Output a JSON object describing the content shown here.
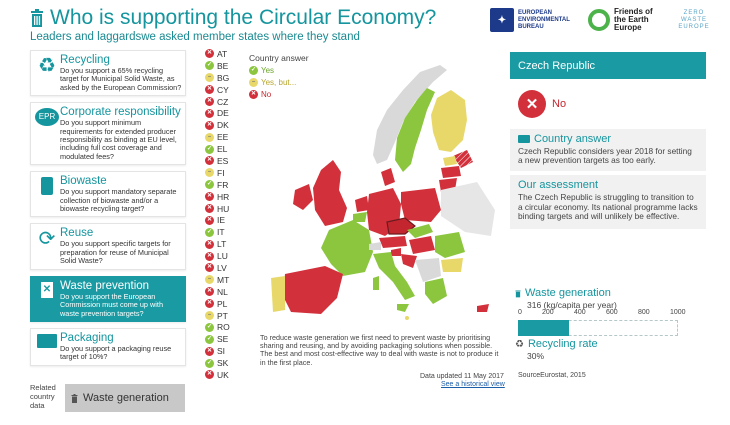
{
  "header": {
    "title": "Who is supporting the Circular Economy?",
    "subtitle": "Leaders and laggardswe asked member states where they stand",
    "logos": {
      "eeb": "EUROPEAN ENVIRONMENTAL BUREAU",
      "foe": "Friends of the Earth Europe",
      "zw": "ZERO WASTE EUROPE"
    }
  },
  "menu": [
    {
      "icon": "recycle-icon",
      "title": "Recycling",
      "desc": "Do you support a 65% recycling target for Municipal Solid Waste, as asked by the European Commission?"
    },
    {
      "icon": "epr-icon",
      "icon_text": "EPR",
      "title": "Corporate responsibility",
      "desc": "Do you support minimum requirements for extended producer responsibility as binding at EU level, including full cost coverage and modulated fees?"
    },
    {
      "icon": "biowaste-icon",
      "title": "Biowaste",
      "desc": "Do you support mandatory separate collection of biowaste and/or a biowaste recycling target?"
    },
    {
      "icon": "reuse-icon",
      "title": "Reuse",
      "desc": "Do you support specific targets for preparation for reuse of Municipal Solid Waste?"
    },
    {
      "icon": "waste-prevention-icon",
      "title": "Waste prevention",
      "desc": "Do you support the European Commission must come up with waste prevention targets?",
      "active": true
    },
    {
      "icon": "packaging-icon",
      "title": "Packaging",
      "desc": "Do you support a packaging reuse target of 10%?"
    }
  ],
  "related": {
    "label": "Related country data",
    "button": "Waste generation"
  },
  "countries": [
    {
      "code": "AT",
      "answer": "no"
    },
    {
      "code": "BE",
      "answer": "yes"
    },
    {
      "code": "BG",
      "answer": "but"
    },
    {
      "code": "CY",
      "answer": "no"
    },
    {
      "code": "CZ",
      "answer": "no"
    },
    {
      "code": "DE",
      "answer": "no"
    },
    {
      "code": "DK",
      "answer": "no"
    },
    {
      "code": "EE",
      "answer": "but"
    },
    {
      "code": "EL",
      "answer": "yes"
    },
    {
      "code": "ES",
      "answer": "no"
    },
    {
      "code": "FI",
      "answer": "but"
    },
    {
      "code": "FR",
      "answer": "yes"
    },
    {
      "code": "HR",
      "answer": "no"
    },
    {
      "code": "HU",
      "answer": "no"
    },
    {
      "code": "IE",
      "answer": "no"
    },
    {
      "code": "IT",
      "answer": "yes"
    },
    {
      "code": "LT",
      "answer": "no"
    },
    {
      "code": "LU",
      "answer": "no"
    },
    {
      "code": "LV",
      "answer": "no"
    },
    {
      "code": "MT",
      "answer": "but"
    },
    {
      "code": "NL",
      "answer": "no"
    },
    {
      "code": "PL",
      "answer": "no"
    },
    {
      "code": "PT",
      "answer": "but"
    },
    {
      "code": "RO",
      "answer": "yes"
    },
    {
      "code": "SE",
      "answer": "yes"
    },
    {
      "code": "SI",
      "answer": "no"
    },
    {
      "code": "SK",
      "answer": "yes"
    },
    {
      "code": "UK",
      "answer": "no"
    }
  ],
  "legend": {
    "title": "Country answer",
    "yes": "Yes",
    "but": "Yes, but...",
    "no": "No"
  },
  "map_caption": "To reduce waste generation we first need to prevent waste by prioritising sharing and reusing, and by avoiding packaging solutions when possible. The best and most cost-effective way to deal with waste is not to produce it in the first place.",
  "data_updated": "Data updated 11 May 2017",
  "historical_link": "See a historical view",
  "panel": {
    "country": "Czech Republic",
    "answer": "No",
    "country_answer_title": "Country answer",
    "country_answer_text": "Czech Republic considers year 2018 for setting a new prevention targets as too early.",
    "assessment_title": "Our assessment",
    "assessment_text": "The Czech Republic is struggling to transition to a circular economy. Its national programme lacks binding targets and will unlikely be effective."
  },
  "waste_generation": {
    "title": "Waste generation",
    "value_text": "316 (kg/capita per year)",
    "value": 316,
    "axis_max": 1000,
    "ticks": [
      "0",
      "200",
      "400",
      "600",
      "800",
      "1000"
    ]
  },
  "recycling_rate": {
    "title": "Recycling rate",
    "value_text": "30%"
  },
  "source": "SourceEurostat, 2015",
  "colors": {
    "accent": "#1a9ba3",
    "yes": "#8cc63f",
    "but": "#e8d86a",
    "no": "#d2313b"
  }
}
